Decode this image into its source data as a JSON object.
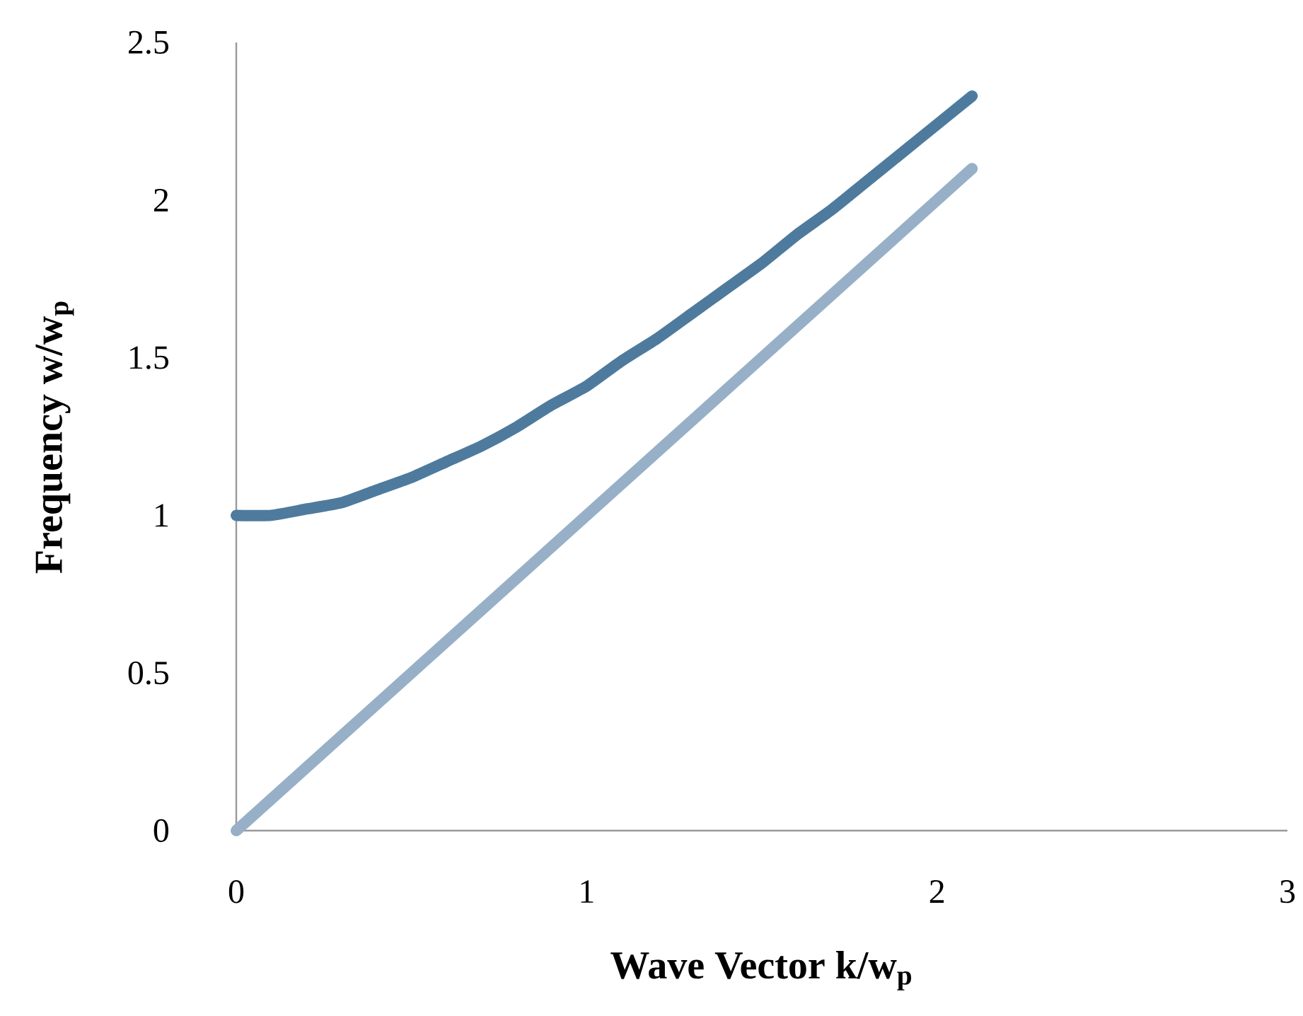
{
  "chart_data": {
    "type": "line",
    "xlabel": "Wave Vector   k/w$_{p}$",
    "ylabel": "Frequency  w/w$_{p}$",
    "xlim": [
      0,
      3
    ],
    "ylim": [
      0,
      2.5
    ],
    "xticks": [
      0,
      1,
      2,
      3
    ],
    "yticks": [
      0,
      0.5,
      1,
      1.5,
      2,
      2.5
    ],
    "marker": "none",
    "line_style": "solid",
    "series": [
      {
        "color": "#4e7b9d",
        "x": [
          0,
          0.1,
          0.2,
          0.3,
          0.4,
          0.5,
          0.6,
          0.7,
          0.8,
          0.9,
          1.0,
          1.1,
          1.2,
          1.3,
          1.4,
          1.5,
          1.6,
          1.7,
          1.8,
          1.9,
          2.0,
          2.1
        ],
        "values": [
          1.0,
          1.0,
          1.02,
          1.04,
          1.08,
          1.12,
          1.17,
          1.22,
          1.28,
          1.35,
          1.41,
          1.49,
          1.56,
          1.64,
          1.72,
          1.8,
          1.89,
          1.97,
          2.06,
          2.15,
          2.24,
          2.33
        ]
      },
      {
        "color": "#97b0c7",
        "x": [
          0,
          2.1
        ],
        "values": [
          0,
          2.1
        ]
      }
    ]
  }
}
